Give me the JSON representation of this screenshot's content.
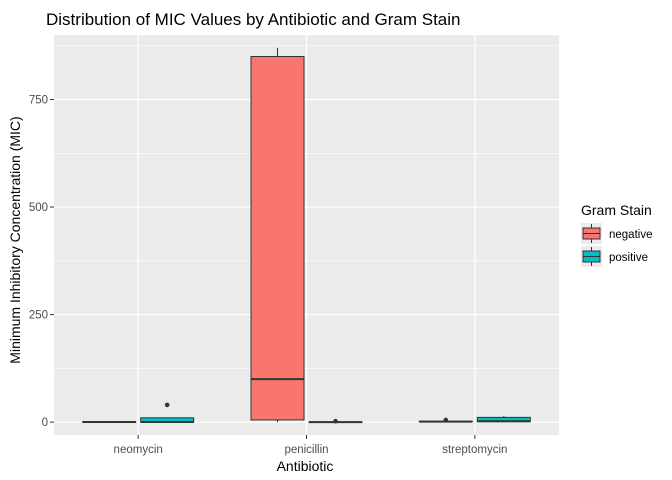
{
  "chart_data": {
    "type": "boxplot",
    "title": "Distribution of MIC Values by Antibiotic and Gram Stain",
    "xlabel": "Antibiotic",
    "ylabel": "Minimum Inhibitory Concentration (MIC)",
    "categories": [
      "neomycin",
      "penicillin",
      "streptomycin"
    ],
    "ylim": [
      -30,
      900
    ],
    "yticks": [
      0,
      250,
      500,
      750
    ],
    "grid": true,
    "legend": {
      "title": "Gram Stain",
      "position": "right"
    },
    "colors": {
      "negative": "#F8766D",
      "positive": "#00BFC4",
      "panel": "#EBEBEB",
      "grid": "#FFFFFF"
    },
    "series": [
      {
        "name": "negative",
        "boxes": [
          {
            "category": "neomycin",
            "min": 0.1,
            "q1": 0.1,
            "median": 0.1,
            "q3": 0.5,
            "max": 0.5,
            "outliers": []
          },
          {
            "category": "penicillin",
            "min": 0.001,
            "q1": 5,
            "median": 100,
            "q3": 850,
            "max": 870,
            "outliers": []
          },
          {
            "category": "streptomycin",
            "min": 0.1,
            "q1": 1,
            "median": 1,
            "q3": 2,
            "max": 3,
            "outliers": [
              5
            ]
          }
        ]
      },
      {
        "name": "positive",
        "boxes": [
          {
            "category": "neomycin",
            "min": 0.007,
            "q1": 0.1,
            "median": 0.1,
            "q3": 10,
            "max": 10,
            "outliers": [
              40
            ]
          },
          {
            "category": "penicillin",
            "min": 0.001,
            "q1": 0.005,
            "median": 0.05,
            "q3": 0.5,
            "max": 1,
            "outliers": [
              2
            ]
          },
          {
            "category": "streptomycin",
            "min": 0.1,
            "q1": 1,
            "median": 2,
            "q3": 11,
            "max": 14,
            "outliers": []
          }
        ]
      }
    ]
  }
}
